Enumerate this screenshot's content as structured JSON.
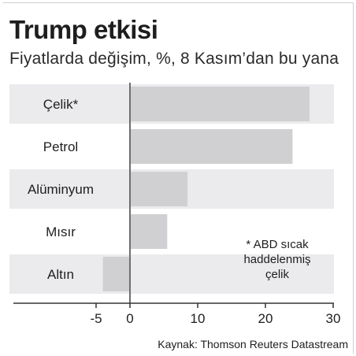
{
  "title": "Trump etkisi",
  "subtitle": "Fiyatlarda değişim, %, 8 Kasım’dan bu yana",
  "source": "Kaynak: Thomson Reuters Datastream",
  "colors": {
    "bar": "#d0d0d2",
    "row_band": "#ebebed",
    "zero_line": "#6e6e6e",
    "axis_line": "#333333",
    "text": "#1e1e1e"
  },
  "chart_data": {
    "type": "bar",
    "orientation": "horizontal",
    "categories": [
      "Çelik*",
      "Petrol",
      "Alüminyum",
      "Mısır",
      "Altın"
    ],
    "values": [
      26.5,
      24,
      8.5,
      5.5,
      -4
    ],
    "xlim": [
      -8,
      30.5
    ],
    "xticks": [
      -5,
      0,
      10,
      20,
      30
    ],
    "xtick_labels": [
      "-5",
      "0",
      "10",
      "20",
      "30"
    ],
    "grid": false,
    "annotation": [
      "* ABD sıcak",
      "haddelenmiş",
      "çelik"
    ]
  }
}
